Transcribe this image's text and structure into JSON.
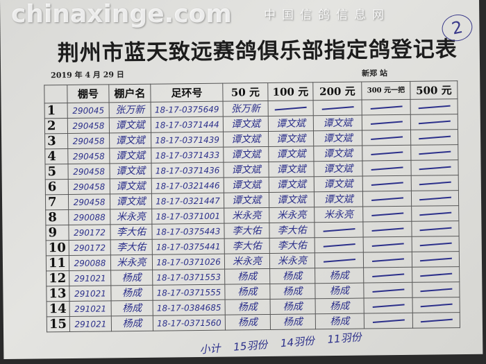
{
  "document": {
    "title": "荆州市蓝天致远赛鸽俱乐部指定鸽登记表",
    "date": "2019 年 4 月 29 日",
    "station": "新郑 站",
    "page_mark": "2",
    "headers": [
      "",
      "棚号",
      "棚户名",
      "足环号",
      "50 元",
      "100 元",
      "200 元",
      "300 元一把",
      "500 元"
    ],
    "rows": [
      {
        "n": "1",
        "loft": "290045",
        "owner": "张万新",
        "ring": "18-17-0375649",
        "c50": "张万新",
        "c100": "—",
        "c200": "—",
        "c300": "—",
        "c500": "—"
      },
      {
        "n": "2",
        "loft": "290458",
        "owner": "谭文斌",
        "ring": "18-17-0371444",
        "c50": "谭文斌",
        "c100": "谭文斌",
        "c200": "谭文斌",
        "c300": "—",
        "c500": "—"
      },
      {
        "n": "3",
        "loft": "290458",
        "owner": "谭文斌",
        "ring": "18-17-0371439",
        "c50": "谭文斌",
        "c100": "谭文斌",
        "c200": "谭文斌",
        "c300": "—",
        "c500": "—"
      },
      {
        "n": "4",
        "loft": "290458",
        "owner": "谭文斌",
        "ring": "18-17-0371433",
        "c50": "谭文斌",
        "c100": "谭文斌",
        "c200": "谭文斌",
        "c300": "—",
        "c500": "—"
      },
      {
        "n": "5",
        "loft": "290458",
        "owner": "谭文斌",
        "ring": "18-17-0371436",
        "c50": "谭文斌",
        "c100": "谭文斌",
        "c200": "谭文斌",
        "c300": "—",
        "c500": "—"
      },
      {
        "n": "6",
        "loft": "290458",
        "owner": "谭文斌",
        "ring": "18-17-0321446",
        "c50": "谭文斌",
        "c100": "谭文斌",
        "c200": "谭文斌",
        "c300": "—",
        "c500": "—"
      },
      {
        "n": "7",
        "loft": "290458",
        "owner": "谭文斌",
        "ring": "18-17-0321447",
        "c50": "谭文斌",
        "c100": "谭文斌",
        "c200": "谭文斌",
        "c300": "—",
        "c500": "—"
      },
      {
        "n": "8",
        "loft": "290088",
        "owner": "米永亮",
        "ring": "18-17-0371001",
        "c50": "米永亮",
        "c100": "米永亮",
        "c200": "米永亮",
        "c300": "—",
        "c500": "—"
      },
      {
        "n": "9",
        "loft": "290172",
        "owner": "李大佑",
        "ring": "18-17-0375443",
        "c50": "李大佑",
        "c100": "李大佑",
        "c200": "—",
        "c300": "—",
        "c500": "—"
      },
      {
        "n": "10",
        "loft": "290172",
        "owner": "李大佑",
        "ring": "18-17-0375441",
        "c50": "李大佑",
        "c100": "李大佑",
        "c200": "—",
        "c300": "—",
        "c500": "—"
      },
      {
        "n": "11",
        "loft": "290088",
        "owner": "米永亮",
        "ring": "18-17-0371026",
        "c50": "米永亮",
        "c100": "米永亮",
        "c200": "—",
        "c300": "—",
        "c500": "—"
      },
      {
        "n": "12",
        "loft": "291021",
        "owner": "杨成",
        "ring": "18-17-0371553",
        "c50": "杨成",
        "c100": "杨成",
        "c200": "杨成",
        "c300": "—",
        "c500": "—"
      },
      {
        "n": "13",
        "loft": "291021",
        "owner": "杨成",
        "ring": "18-17-0371555",
        "c50": "杨成",
        "c100": "杨成",
        "c200": "杨成",
        "c300": "—",
        "c500": "—"
      },
      {
        "n": "14",
        "loft": "291021",
        "owner": "杨成",
        "ring": "18-17-0384685",
        "c50": "杨成",
        "c100": "杨成",
        "c200": "杨成",
        "c300": "—",
        "c500": "—"
      },
      {
        "n": "15",
        "loft": "291021",
        "owner": "杨成",
        "ring": "18-17-0371560",
        "c50": "杨成",
        "c100": "杨成",
        "c200": "杨成",
        "c300": "—",
        "c500": "—"
      }
    ],
    "totals": [
      "小计",
      "15羽份",
      "14羽份",
      "11羽份"
    ]
  },
  "watermark": {
    "line1": "chinaxinge.com",
    "line2": "中国信鸽信息网"
  },
  "colors": {
    "ink": "#2b2f8a",
    "paper": "#dededa"
  }
}
